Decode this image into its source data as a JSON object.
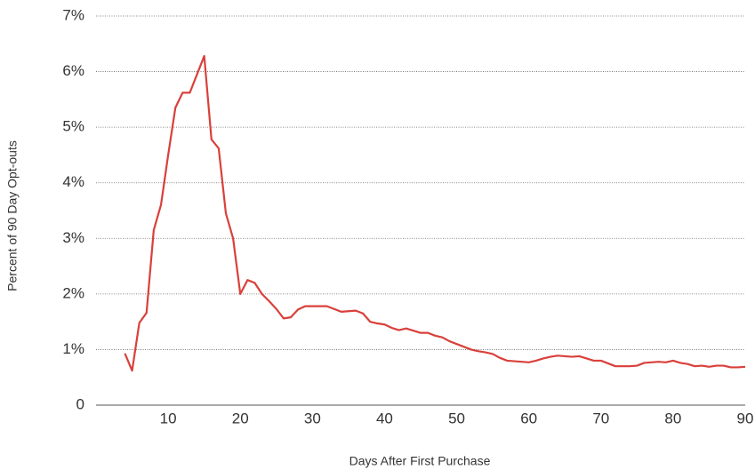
{
  "chart_data": {
    "type": "line",
    "x_label": "Days After First Purchase",
    "y_label": "Percent of 90 Day Opt-outs",
    "x": [
      4,
      5,
      6,
      7,
      8,
      9,
      10,
      11,
      12,
      13,
      14,
      15,
      16,
      17,
      18,
      19,
      20,
      21,
      22,
      23,
      24,
      25,
      26,
      27,
      28,
      29,
      30,
      31,
      32,
      33,
      34,
      35,
      36,
      37,
      38,
      39,
      40,
      41,
      42,
      43,
      44,
      45,
      46,
      47,
      48,
      49,
      50,
      51,
      52,
      53,
      54,
      55,
      56,
      57,
      58,
      59,
      60,
      61,
      62,
      63,
      64,
      65,
      66,
      67,
      68,
      69,
      70,
      71,
      72,
      73,
      74,
      75,
      76,
      77,
      78,
      79,
      80,
      81,
      82,
      83,
      84,
      85,
      86,
      87,
      88,
      89,
      90
    ],
    "values": [
      0.93,
      0.62,
      1.48,
      1.66,
      3.15,
      3.6,
      4.5,
      5.35,
      5.62,
      5.62,
      5.95,
      6.28,
      4.78,
      4.62,
      3.45,
      3.0,
      2.0,
      2.25,
      2.2,
      2.0,
      1.87,
      1.73,
      1.56,
      1.58,
      1.72,
      1.78,
      1.78,
      1.78,
      1.78,
      1.73,
      1.68,
      1.69,
      1.7,
      1.65,
      1.5,
      1.47,
      1.45,
      1.39,
      1.35,
      1.38,
      1.34,
      1.3,
      1.3,
      1.25,
      1.22,
      1.15,
      1.1,
      1.05,
      1.0,
      0.97,
      0.95,
      0.92,
      0.85,
      0.8,
      0.79,
      0.78,
      0.77,
      0.8,
      0.84,
      0.87,
      0.89,
      0.88,
      0.87,
      0.88,
      0.84,
      0.8,
      0.8,
      0.75,
      0.7,
      0.7,
      0.7,
      0.71,
      0.76,
      0.77,
      0.78,
      0.77,
      0.8,
      0.76,
      0.74,
      0.7,
      0.71,
      0.69,
      0.71,
      0.71,
      0.68,
      0.68,
      0.69
    ],
    "color": "#d9403b",
    "xlim": [
      0,
      90
    ],
    "xticks": [
      10,
      20,
      30,
      40,
      50,
      60,
      70,
      80,
      90
    ],
    "ylim": [
      0,
      7
    ],
    "yticks": [
      0,
      {
        "value": 1,
        "label": "1%"
      },
      {
        "value": 2,
        "label": "2%"
      },
      {
        "value": 3,
        "label": "3%"
      },
      {
        "value": 4,
        "label": "4%"
      },
      {
        "value": 5,
        "label": "5%"
      },
      {
        "value": 6,
        "label": "6%"
      },
      {
        "value": 7,
        "label": "7%"
      }
    ],
    "grid": true
  }
}
